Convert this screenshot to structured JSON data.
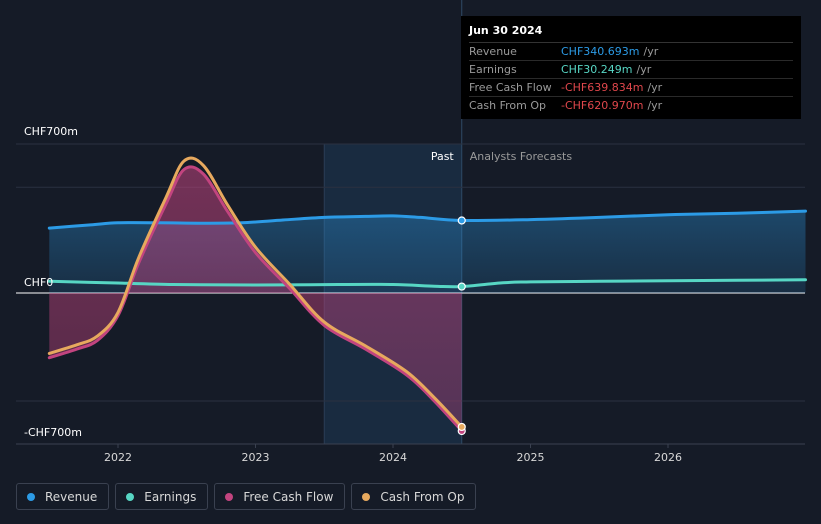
{
  "chart_data": {
    "type": "line",
    "title": "",
    "y_tick_labels": [
      "CHF700m",
      "CHF0",
      "-CHF700m"
    ],
    "ylim": [
      -700,
      700
    ],
    "x_tick_labels": [
      "2022",
      "2023",
      "2024",
      "2025",
      "2026"
    ],
    "xlim": [
      2021.5,
      2027.0
    ],
    "divider_year": 2024.5,
    "forecast_start": 2023.5,
    "past_label": "Past",
    "forecast_label": "Analysts Forecasts",
    "series": [
      {
        "name": "Revenue",
        "color": "#2c9be6",
        "points": [
          [
            2021.5,
            305
          ],
          [
            2021.8,
            320
          ],
          [
            2022.0,
            330
          ],
          [
            2022.3,
            330
          ],
          [
            2022.6,
            328
          ],
          [
            2022.9,
            330
          ],
          [
            2023.2,
            343
          ],
          [
            2023.5,
            355
          ],
          [
            2023.8,
            360
          ],
          [
            2024.0,
            362
          ],
          [
            2024.2,
            355
          ],
          [
            2024.5,
            340.693
          ],
          [
            2025.0,
            345
          ],
          [
            2025.5,
            355
          ],
          [
            2026.0,
            368
          ],
          [
            2026.5,
            375
          ],
          [
            2027.0,
            385
          ]
        ]
      },
      {
        "name": "Earnings",
        "color": "#57d6c4",
        "points": [
          [
            2021.5,
            55
          ],
          [
            2021.8,
            50
          ],
          [
            2022.0,
            47
          ],
          [
            2022.4,
            40
          ],
          [
            2022.8,
            38
          ],
          [
            2023.2,
            38
          ],
          [
            2023.6,
            40
          ],
          [
            2024.0,
            40
          ],
          [
            2024.3,
            32
          ],
          [
            2024.5,
            30.249
          ],
          [
            2024.8,
            48
          ],
          [
            2025.0,
            52
          ],
          [
            2025.5,
            55
          ],
          [
            2026.0,
            58
          ],
          [
            2026.5,
            60
          ],
          [
            2027.0,
            62
          ]
        ]
      },
      {
        "name": "Free Cash Flow",
        "color": "#c2447f",
        "points": [
          [
            2021.5,
            -300
          ],
          [
            2021.7,
            -260
          ],
          [
            2021.85,
            -220
          ],
          [
            2022.0,
            -105
          ],
          [
            2022.15,
            140
          ],
          [
            2022.35,
            420
          ],
          [
            2022.48,
            580
          ],
          [
            2022.62,
            560
          ],
          [
            2022.8,
            380
          ],
          [
            2023.0,
            190
          ],
          [
            2023.25,
            20
          ],
          [
            2023.5,
            -150
          ],
          [
            2023.8,
            -260
          ],
          [
            2024.1,
            -380
          ],
          [
            2024.3,
            -500
          ],
          [
            2024.5,
            -639.834
          ]
        ]
      },
      {
        "name": "Cash From Op",
        "color": "#e7a95e",
        "points": [
          [
            2021.5,
            -280
          ],
          [
            2021.7,
            -240
          ],
          [
            2021.85,
            -200
          ],
          [
            2022.0,
            -90
          ],
          [
            2022.15,
            165
          ],
          [
            2022.35,
            450
          ],
          [
            2022.48,
            620
          ],
          [
            2022.62,
            600
          ],
          [
            2022.8,
            410
          ],
          [
            2023.0,
            215
          ],
          [
            2023.25,
            40
          ],
          [
            2023.5,
            -135
          ],
          [
            2023.8,
            -245
          ],
          [
            2024.1,
            -365
          ],
          [
            2024.3,
            -485
          ],
          [
            2024.5,
            -620.97
          ]
        ]
      }
    ]
  },
  "tooltip": {
    "date": "Jun 30 2024",
    "rows": [
      {
        "label": "Revenue",
        "value": "CHF340.693m",
        "unit": "/yr",
        "color": "#2c9be6"
      },
      {
        "label": "Earnings",
        "value": "CHF30.249m",
        "unit": "/yr",
        "color": "#57d6c4"
      },
      {
        "label": "Free Cash Flow",
        "value": "-CHF639.834m",
        "unit": "/yr",
        "color": "#e0474c"
      },
      {
        "label": "Cash From Op",
        "value": "-CHF620.970m",
        "unit": "/yr",
        "color": "#e0474c"
      }
    ]
  },
  "legend": [
    {
      "label": "Revenue",
      "color": "#2c9be6"
    },
    {
      "label": "Earnings",
      "color": "#57d6c4"
    },
    {
      "label": "Free Cash Flow",
      "color": "#c2447f"
    },
    {
      "label": "Cash From Op",
      "color": "#e7a95e"
    }
  ]
}
